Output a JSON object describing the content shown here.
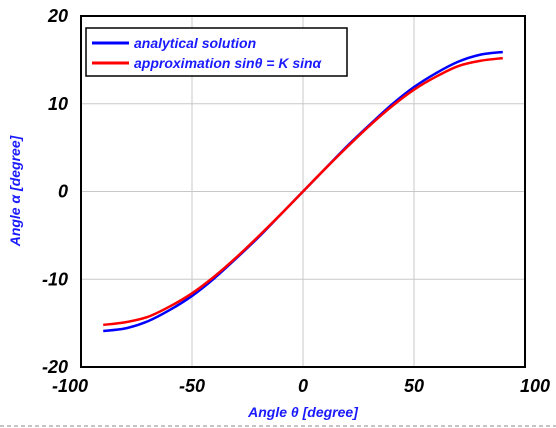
{
  "chart_data": {
    "type": "line",
    "xlabel": "Angle θ [degree]",
    "ylabel": "Angle α [degree]",
    "xlim": [
      -100,
      100
    ],
    "ylim": [
      -20,
      20
    ],
    "xticks": [
      -100,
      -50,
      0,
      50,
      100
    ],
    "yticks": [
      -20,
      -10,
      0,
      10,
      20
    ],
    "grid": true,
    "legend_position": "top-left",
    "series": [
      {
        "name": "analytical solution",
        "color": "#0000ff",
        "x": [
          -90,
          -80,
          -70,
          -60,
          -50,
          -40,
          -30,
          -20,
          -10,
          0,
          10,
          20,
          30,
          40,
          50,
          60,
          70,
          80,
          90
        ],
        "y": [
          -15.9,
          -15.6,
          -14.8,
          -13.5,
          -11.9,
          -9.9,
          -7.6,
          -5.2,
          -2.6,
          0,
          2.6,
          5.2,
          7.6,
          9.9,
          11.9,
          13.5,
          14.8,
          15.6,
          15.9
        ]
      },
      {
        "name": "approximation sinθ = K sinα",
        "color": "#ff0000",
        "x": [
          -90,
          -80,
          -70,
          -60,
          -50,
          -40,
          -30,
          -20,
          -10,
          0,
          10,
          20,
          30,
          40,
          50,
          60,
          70,
          80,
          90
        ],
        "y": [
          -15.2,
          -14.9,
          -14.3,
          -13.1,
          -11.6,
          -9.7,
          -7.5,
          -5.1,
          -2.6,
          0,
          2.6,
          5.1,
          7.5,
          9.7,
          11.6,
          13.1,
          14.3,
          14.9,
          15.2
        ]
      }
    ]
  }
}
